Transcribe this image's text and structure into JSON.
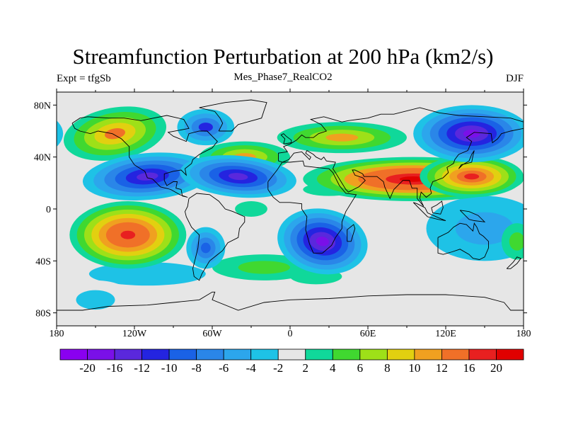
{
  "chart_data": {
    "type": "heatmap",
    "title": "Streamfunction Perturbation at 200 hPa (km2/s)",
    "left_subtitle": "Expt = tfgSb",
    "center_subtitle": "Mes_Phase7_RealCO2",
    "right_subtitle": "DJF",
    "x_ticks": [
      "180",
      "120W",
      "60W",
      "0",
      "60E",
      "120E",
      "180"
    ],
    "x_tick_values": [
      -180,
      -120,
      -60,
      0,
      60,
      120,
      180
    ],
    "y_ticks": [
      "80N",
      "40N",
      "0",
      "40S",
      "80S"
    ],
    "y_tick_values": [
      80,
      40,
      0,
      -40,
      -80
    ],
    "xlim": [
      -180,
      180
    ],
    "ylim": [
      -90,
      90
    ],
    "colorbar_levels": [
      "-20",
      "-16",
      "-12",
      "-10",
      "-8",
      "-6",
      "-4",
      "-2",
      "2",
      "4",
      "6",
      "8",
      "10",
      "12",
      "16",
      "20"
    ],
    "colorbar_colors": [
      "#8a00f0",
      "#7a10e8",
      "#5a28dc",
      "#2424e0",
      "#1a62e6",
      "#2a86e8",
      "#2ca6ec",
      "#1ec2e6",
      "#e6e6e6",
      "#10d89a",
      "#40d830",
      "#9ee018",
      "#e2d010",
      "#f0a020",
      "#f07028",
      "#e82020",
      "#e00000"
    ],
    "features": [
      {
        "label": "positive",
        "lon": -135,
        "lat": 58,
        "value": 12
      },
      {
        "label": "positive",
        "lon": -125,
        "lat": -20,
        "value": 18
      },
      {
        "label": "positive",
        "lon": 95,
        "lat": 23,
        "value": 20
      },
      {
        "label": "positive",
        "lon": 140,
        "lat": 25,
        "value": 16
      },
      {
        "label": "positive",
        "lon": 40,
        "lat": 55,
        "value": 10
      },
      {
        "label": "positive",
        "lon": -35,
        "lat": 40,
        "value": 10
      },
      {
        "label": "negative",
        "lon": -110,
        "lat": 25,
        "value": -14
      },
      {
        "label": "negative",
        "lon": -40,
        "lat": 25,
        "value": -14
      },
      {
        "label": "negative",
        "lon": 25,
        "lat": -25,
        "value": -16
      },
      {
        "label": "negative",
        "lon": 140,
        "lat": 58,
        "value": -16
      },
      {
        "label": "negative",
        "lon": -65,
        "lat": 63,
        "value": -10
      },
      {
        "label": "negative",
        "lon": -65,
        "lat": -30,
        "value": -8
      }
    ]
  }
}
